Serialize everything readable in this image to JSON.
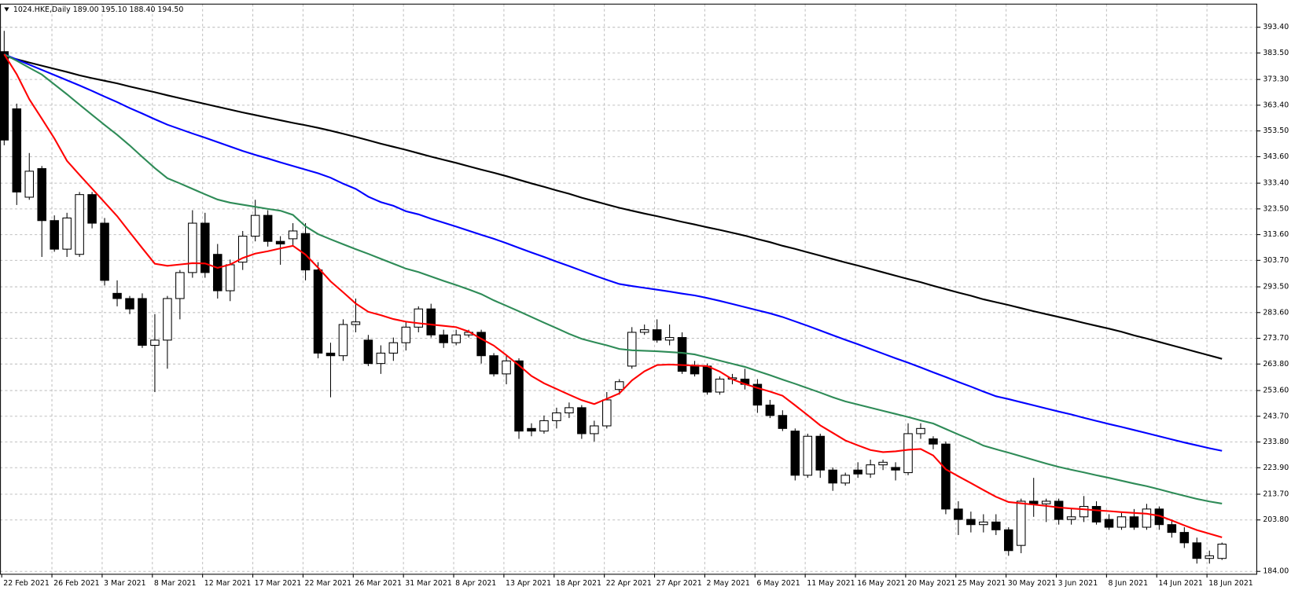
{
  "chart_data": {
    "type": "candlestick",
    "title": "1024.HKE,Daily  189.00 195.10 188.40 194.50",
    "categories": [
      "22 Feb 2021",
      null,
      null,
      null,
      "26 Feb 2021",
      null,
      null,
      null,
      "3 Mar 2021",
      null,
      null,
      null,
      "8 Mar 2021",
      null,
      null,
      null,
      "12 Mar 2021",
      null,
      null,
      null,
      "17 Mar 2021",
      null,
      null,
      null,
      "22 Mar 2021",
      null,
      null,
      null,
      "26 Mar 2021",
      null,
      null,
      null,
      "31 Mar 2021",
      null,
      null,
      null,
      "8 Apr 2021",
      null,
      null,
      null,
      "13 Apr 2021",
      null,
      null,
      null,
      "18 Apr 2021",
      null,
      null,
      null,
      "22 Apr 2021",
      null,
      null,
      null,
      "27 Apr 2021",
      null,
      null,
      null,
      "2 May 2021",
      null,
      null,
      null,
      "6 May 2021",
      null,
      null,
      null,
      "11 May 2021",
      null,
      null,
      null,
      "16 May 2021",
      null,
      null,
      null,
      "20 May 2021",
      null,
      null,
      null,
      "25 May 2021",
      null,
      null,
      null,
      "30 May 2021",
      null,
      null,
      null,
      "3 Jun 2021",
      null,
      null,
      null,
      "8 Jun 2021",
      null,
      null,
      null,
      "14 Jun 2021",
      null,
      null,
      null,
      "18 Jun 2021",
      null
    ],
    "open": [
      384,
      362,
      328,
      339,
      319,
      308,
      306,
      329,
      318,
      291,
      289,
      289,
      271,
      273,
      289,
      299,
      318,
      306,
      292,
      303,
      313,
      321,
      311,
      312,
      314,
      300,
      268,
      267,
      279,
      273,
      264,
      268,
      272,
      278,
      285,
      275,
      272,
      275,
      276,
      267,
      260,
      265,
      239,
      238,
      242,
      245,
      247,
      237,
      240,
      254,
      263,
      276,
      277,
      273,
      274,
      263,
      263,
      253,
      258,
      258,
      256,
      248,
      244,
      238,
      221,
      236,
      223,
      218,
      223,
      221.5,
      225,
      224,
      222,
      237,
      235,
      233,
      208,
      204,
      202,
      203,
      200,
      194,
      211,
      210,
      211,
      204,
      205,
      209,
      204,
      201,
      205,
      201,
      208,
      202,
      199,
      195,
      189,
      189
    ],
    "high": [
      392,
      364,
      345,
      340,
      321,
      322,
      330,
      330,
      320,
      296,
      290,
      291,
      283,
      290,
      300,
      323,
      322,
      310,
      304,
      315,
      327,
      323,
      313,
      318,
      318,
      303,
      272,
      281,
      289,
      275,
      271,
      274,
      280,
      286,
      287,
      277,
      277,
      277,
      277,
      268,
      267,
      266,
      241,
      244,
      247,
      249,
      248,
      242,
      253,
      258,
      278,
      279,
      281,
      279,
      276,
      265,
      264,
      259,
      260,
      262,
      258,
      250,
      246,
      239,
      237,
      237,
      224,
      222,
      226,
      227,
      227,
      226,
      241,
      241,
      236,
      234,
      211,
      207,
      206,
      206,
      201,
      212,
      220,
      212,
      212,
      208,
      213,
      211,
      206,
      207,
      208,
      210,
      209,
      204,
      201,
      197,
      192,
      195.1
    ],
    "low": [
      348,
      325,
      327,
      305,
      307,
      305,
      305,
      316,
      294,
      286,
      283,
      270,
      253,
      262,
      281,
      297,
      297,
      289,
      288,
      300,
      311,
      309,
      302,
      309,
      296,
      266,
      251,
      265,
      276,
      263,
      260,
      265,
      269,
      276,
      274,
      270,
      271,
      274,
      264,
      259,
      256,
      235,
      236,
      237,
      239,
      243,
      235,
      234,
      239,
      252,
      262,
      275,
      272,
      271,
      260,
      259,
      252,
      252,
      256,
      254,
      245,
      243,
      238,
      219,
      220,
      220,
      215,
      217,
      220,
      220,
      223,
      219,
      221,
      235,
      231,
      206,
      198,
      199,
      199,
      198,
      190,
      191,
      205,
      203,
      202,
      202,
      203,
      202,
      200,
      200,
      200,
      200,
      200,
      197,
      193,
      187,
      187,
      188.4
    ],
    "close": [
      350,
      330,
      338,
      319,
      308,
      320,
      329,
      318,
      296,
      289,
      285,
      271,
      273,
      289,
      299,
      318,
      299,
      292,
      302,
      313,
      321,
      311,
      310,
      315,
      300,
      268,
      267,
      279,
      280,
      264,
      268,
      272,
      278,
      285,
      275,
      272,
      275,
      276,
      267,
      260,
      265,
      238,
      238,
      242,
      245,
      247,
      237,
      240,
      250,
      257,
      276,
      277,
      273,
      274,
      261,
      260,
      253,
      258,
      258.5,
      256,
      248,
      244,
      239,
      221,
      236,
      223,
      218,
      221,
      221.5,
      225,
      226,
      223,
      237,
      239,
      233,
      208,
      204,
      202,
      203,
      200,
      192,
      211,
      210,
      211,
      204,
      205,
      209,
      203,
      201,
      205,
      201,
      208,
      202,
      199,
      195,
      189,
      190,
      194.5
    ],
    "up_color": "#ffffff",
    "down_color": "#000000",
    "lines": [
      {
        "color": "#000000",
        "values": [
          382.3,
          381.1,
          379.8,
          378.6,
          377.4,
          376.2,
          374.9,
          373.8,
          372.8,
          371.8,
          370.6,
          369.5,
          368.4,
          367.2,
          366.1,
          365.0,
          363.9,
          362.8,
          361.7,
          360.6,
          359.6,
          358.6,
          357.6,
          356.6,
          355.7,
          354.7,
          353.6,
          352.4,
          351.2,
          349.9,
          348.6,
          347.4,
          346.2,
          344.9,
          343.6,
          342.4,
          341.2,
          339.9,
          338.6,
          337.4,
          336.1,
          334.7,
          333.3,
          332.0,
          330.6,
          329.3,
          327.8,
          326.5,
          325.2,
          323.9,
          322.8,
          321.7,
          320.7,
          319.6,
          318.5,
          317.5,
          316.4,
          315.4,
          314.3,
          313.2,
          311.9,
          310.7,
          309.3,
          308.1,
          306.8,
          305.5,
          304.2,
          302.9,
          301.7,
          300.4,
          299.1,
          297.8,
          296.5,
          295.3,
          293.9,
          292.6,
          291.3,
          290.1,
          288.7,
          287.6,
          286.5,
          285.3,
          284.1,
          283.0,
          281.9,
          280.8,
          279.6,
          278.5,
          277.4,
          276.2,
          274.8,
          273.6,
          272.3,
          271.0,
          269.7,
          268.4,
          267.1,
          265.8
        ]
      },
      {
        "color": "#0000ff",
        "values": [
          383,
          381,
          379,
          377,
          375,
          373,
          371,
          368.9,
          366.7,
          364.6,
          362.3,
          360.2,
          358,
          355.9,
          354.2,
          352.5,
          350.9,
          349.2,
          347.5,
          345.8,
          344.3,
          342.9,
          341.4,
          340,
          338.6,
          337.2,
          335.5,
          333.2,
          331.2,
          328.2,
          326.1,
          324.7,
          322.6,
          321.4,
          319.7,
          318.2,
          316.7,
          315.1,
          313.5,
          312,
          310.3,
          308.5,
          306.7,
          305,
          303.2,
          301.5,
          299.7,
          297.9,
          296.2,
          294.6,
          293.8,
          293.1,
          292.4,
          291.7,
          290.9,
          290.2,
          289.2,
          288.1,
          286.9,
          285.7,
          284.5,
          283.3,
          281.9,
          280.2,
          278.5,
          276.7,
          274.9,
          273.1,
          271.4,
          269.6,
          267.8,
          266,
          264.3,
          262.5,
          260.6,
          258.8,
          256.9,
          255.1,
          253.2,
          251.4,
          250.3,
          249.1,
          247.9,
          246.7,
          245.5,
          244.4,
          243.1,
          241.9,
          240.7,
          239.6,
          238.4,
          237.2,
          236,
          234.8,
          233.6,
          232.5,
          231.4,
          230.4
        ]
      },
      {
        "color": "#2e8b57",
        "values": [
          383,
          380.5,
          377.8,
          375.2,
          371.4,
          367.6,
          363.6,
          359.7,
          355.8,
          352,
          347.9,
          343.5,
          339.2,
          335.3,
          333.3,
          331.2,
          329.1,
          327.1,
          325.9,
          325.1,
          324.3,
          323.5,
          322.8,
          321.2,
          316.8,
          313.8,
          311.8,
          309.9,
          308,
          306.2,
          304.3,
          302.4,
          300.5,
          299.2,
          297.5,
          295.8,
          294.2,
          292.5,
          290.7,
          288.3,
          286.2,
          284.1,
          281.9,
          279.7,
          277.6,
          275.4,
          273.5,
          272.2,
          271,
          269.6,
          269.1,
          268.9,
          268.7,
          268.4,
          268.1,
          267.5,
          266.3,
          265.1,
          263.9,
          262.7,
          261.1,
          259.5,
          257.8,
          256.2,
          254.5,
          252.8,
          251,
          249.4,
          248.2,
          247,
          245.8,
          244.6,
          243.4,
          242.1,
          240.9,
          238.8,
          236.7,
          234.7,
          232.4,
          231,
          229.7,
          228.3,
          226.9,
          225.5,
          224.2,
          223.1,
          222.1,
          221,
          220,
          218.9,
          217.8,
          216.8,
          215.6,
          214.3,
          213.1,
          211.9,
          210.9,
          210.1
        ]
      },
      {
        "color": "#ff0000",
        "values": [
          383,
          375.3,
          365.7,
          358.2,
          350.6,
          342,
          336.6,
          331.3,
          326,
          320.7,
          314.5,
          308.4,
          302.4,
          301.6,
          302.1,
          302.6,
          302.5,
          300.8,
          302.1,
          304.6,
          306.3,
          307.2,
          308.3,
          309.3,
          305.9,
          300.9,
          295.6,
          291.4,
          287.1,
          283.9,
          282.6,
          281.1,
          280.1,
          279.5,
          279,
          278.5,
          278,
          276.3,
          273.5,
          270.9,
          267.2,
          263.3,
          259.2,
          256.4,
          254.2,
          252,
          249.9,
          248.4,
          250.4,
          252.5,
          257.5,
          261,
          263.4,
          263.6,
          263.4,
          263.2,
          263,
          260.9,
          257.9,
          256.1,
          254.6,
          253.2,
          251.6,
          247.9,
          244.1,
          240.2,
          237.3,
          234.4,
          232.5,
          230.7,
          229.9,
          230.2,
          230.8,
          231.1,
          228.6,
          223.3,
          220.6,
          218,
          215.3,
          212.7,
          210.7,
          210.2,
          209.7,
          209.2,
          208.6,
          208.2,
          207.9,
          207.5,
          207.2,
          206.8,
          206.5,
          206.2,
          205.4,
          203.6,
          201.7,
          199.9,
          198.5,
          197.1
        ]
      }
    ],
    "ylim": [
      182.9,
      402.3
    ],
    "yticks": [
      {
        "value": 393.4,
        "label": "393.40"
      },
      {
        "value": 383.5,
        "label": "383.50"
      },
      {
        "value": 373.3,
        "label": "373.30"
      },
      {
        "value": 363.4,
        "label": "363.40"
      },
      {
        "value": 353.5,
        "label": "353.50"
      },
      {
        "value": 343.6,
        "label": "343.60"
      },
      {
        "value": 333.4,
        "label": "333.40"
      },
      {
        "value": 323.5,
        "label": "323.50"
      },
      {
        "value": 313.6,
        "label": "313.60"
      },
      {
        "value": 303.7,
        "label": "303.70"
      },
      {
        "value": 293.5,
        "label": "293.50"
      },
      {
        "value": 283.6,
        "label": "283.60"
      },
      {
        "value": 273.7,
        "label": "273.70"
      },
      {
        "value": 263.8,
        "label": "263.80"
      },
      {
        "value": 253.6,
        "label": "253.60"
      },
      {
        "value": 243.7,
        "label": "243.70"
      },
      {
        "value": 233.8,
        "label": "233.80"
      },
      {
        "value": 223.9,
        "label": "223.90"
      },
      {
        "value": 213.7,
        "label": "213.70"
      },
      {
        "value": 203.8,
        "label": "203.80"
      },
      {
        "value": 184,
        "label": "184.00"
      }
    ],
    "grid": true
  }
}
